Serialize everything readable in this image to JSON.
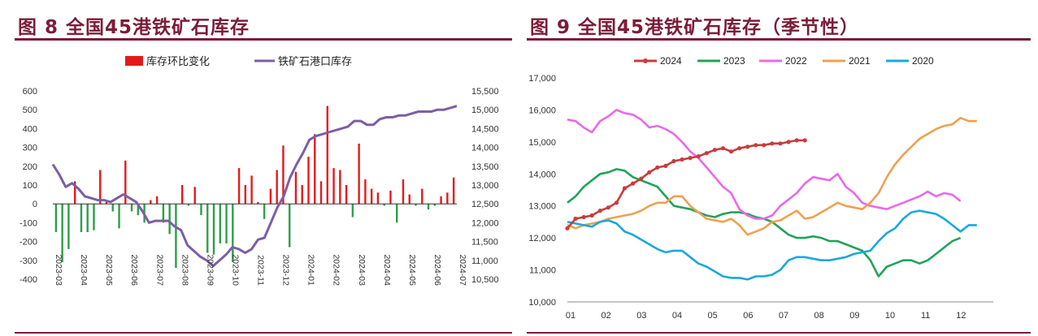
{
  "figure8": {
    "title": "图 8  全国45港铁矿石库存",
    "chart_data": {
      "type": "bar+line",
      "legend": [
        "库存环比变化",
        "铁矿石港口库存"
      ],
      "legend_position": "top",
      "colors": {
        "bar_pos": "#e31a1c",
        "bar_neg": "#2e9e49",
        "line": "#7b5ea7"
      },
      "y_left": {
        "ticks": [
          "600",
          "500",
          "400",
          "300",
          "200",
          "100",
          "0",
          "-100",
          "-200",
          "-300",
          "-400"
        ],
        "range": [
          -400,
          600
        ]
      },
      "y_right": {
        "ticks": [
          "15,500",
          "15,000",
          "14,500",
          "14,000",
          "13,500",
          "13,000",
          "12,500",
          "12,000",
          "11,500",
          "11,000",
          "10,500"
        ],
        "range": [
          10500,
          15500
        ]
      },
      "x_ticks": [
        "2023-03",
        "2023-04",
        "2023-05",
        "2023-06",
        "2023-07",
        "2023-08",
        "2023-09",
        "2023-10",
        "2023-11",
        "2023-12",
        "2024-01",
        "2024-02",
        "2024-03",
        "2024-04",
        "2024-05",
        "2024-06",
        "2024-07"
      ],
      "bar_values": [
        -150,
        -310,
        -240,
        120,
        -150,
        -150,
        -140,
        180,
        10,
        -40,
        -130,
        230,
        -40,
        -60,
        -100,
        20,
        40,
        -100,
        -160,
        -340,
        100,
        -10,
        90,
        -60,
        -260,
        -270,
        -210,
        -210,
        -310,
        190,
        100,
        150,
        10,
        -80,
        80,
        180,
        310,
        -230,
        170,
        100,
        250,
        370,
        120,
        520,
        190,
        180,
        100,
        -70,
        320,
        130,
        80,
        60,
        -10,
        70,
        -100,
        130,
        50,
        -10,
        80,
        -30,
        -10,
        40,
        60,
        140
      ],
      "line_values": [
        13550,
        13280,
        12950,
        13050,
        12900,
        12700,
        12650,
        12600,
        12600,
        12550,
        12650,
        12750,
        12650,
        12550,
        12300,
        12000,
        12050,
        12050,
        12050,
        11900,
        11800,
        11400,
        11250,
        11100,
        11000,
        10850,
        11000,
        11150,
        11350,
        11300,
        11200,
        11300,
        11550,
        11600,
        12000,
        12400,
        12700,
        13200,
        13550,
        13850,
        14200,
        14300,
        14350,
        14400,
        14450,
        14500,
        14550,
        14700,
        14700,
        14600,
        14600,
        14750,
        14800,
        14800,
        14850,
        14850,
        14900,
        14950,
        14950,
        14950,
        15000,
        15000,
        15050,
        15100
      ]
    }
  },
  "figure9": {
    "title": "图 9  全国45港铁矿石库存（季节性）",
    "chart_data": {
      "type": "line",
      "legend_position": "top",
      "y": {
        "ticks": [
          "17,000",
          "16,000",
          "15,000",
          "14,000",
          "13,000",
          "12,000",
          "11,000",
          "10,000"
        ],
        "range": [
          10000,
          17000
        ]
      },
      "x_ticks": [
        "01",
        "02",
        "03",
        "04",
        "05",
        "06",
        "07",
        "08",
        "09",
        "10",
        "11",
        "12"
      ],
      "series": [
        {
          "name": "2024",
          "color": "#c83c3c",
          "markers": true,
          "values": [
            12300,
            12600,
            12650,
            12700,
            12850,
            12950,
            13100,
            13550,
            13700,
            13850,
            14050,
            14200,
            14250,
            14400,
            14450,
            14500,
            14550,
            14650,
            14750,
            14800,
            14700,
            14800,
            14850,
            14900,
            14900,
            14950,
            14950,
            15000,
            15050,
            15050
          ]
        },
        {
          "name": "2023",
          "color": "#22a35a",
          "values": [
            13100,
            13300,
            13600,
            13800,
            14000,
            14050,
            14150,
            14100,
            13900,
            13800,
            13700,
            13600,
            13300,
            13000,
            12950,
            12900,
            12800,
            12700,
            12650,
            12750,
            12800,
            12800,
            12750,
            12650,
            12600,
            12500,
            12300,
            12100,
            12000,
            12000,
            12050,
            12000,
            11900,
            11900,
            11800,
            11700,
            11600,
            11300,
            10800,
            11100,
            11200,
            11300,
            11300,
            11200,
            11300,
            11500,
            11700,
            11900,
            12000
          ]
        },
        {
          "name": "2022",
          "color": "#e969e9",
          "values": [
            15700,
            15650,
            15450,
            15300,
            15650,
            15800,
            16000,
            15900,
            15850,
            15700,
            15450,
            15500,
            15400,
            15250,
            15000,
            14700,
            14500,
            14200,
            13900,
            13600,
            13400,
            12900,
            12700,
            12600,
            12600,
            12700,
            13000,
            13200,
            13400,
            13700,
            13900,
            13850,
            13800,
            14000,
            13600,
            13400,
            13100,
            13000,
            12950,
            12900,
            13000,
            13100,
            13200,
            13300,
            13450,
            13300,
            13400,
            13350,
            13150
          ]
        },
        {
          "name": "2021",
          "color": "#f0a050",
          "values": [
            12400,
            12300,
            12400,
            12450,
            12500,
            12600,
            12650,
            12700,
            12750,
            12850,
            13000,
            13100,
            13100,
            13300,
            13300,
            13000,
            12800,
            12600,
            12550,
            12500,
            12600,
            12400,
            12100,
            12200,
            12300,
            12500,
            12550,
            12700,
            12850,
            12600,
            12650,
            12800,
            12950,
            13100,
            13000,
            12950,
            12900,
            13100,
            13400,
            13900,
            14300,
            14600,
            14850,
            15100,
            15250,
            15400,
            15500,
            15550,
            15750,
            15650,
            15650
          ]
        },
        {
          "name": "2020",
          "color": "#1aa8dc",
          "values": [
            12500,
            12450,
            12400,
            12350,
            12500,
            12550,
            12450,
            12200,
            12100,
            11950,
            11800,
            11650,
            11550,
            11600,
            11600,
            11400,
            11200,
            11100,
            10950,
            10800,
            10750,
            10750,
            10700,
            10800,
            10800,
            10850,
            11000,
            11300,
            11400,
            11400,
            11350,
            11300,
            11300,
            11350,
            11400,
            11500,
            11550,
            11600,
            11900,
            12150,
            12300,
            12600,
            12800,
            12850,
            12800,
            12750,
            12600,
            12400,
            12200,
            12400,
            12400
          ]
        }
      ]
    }
  }
}
